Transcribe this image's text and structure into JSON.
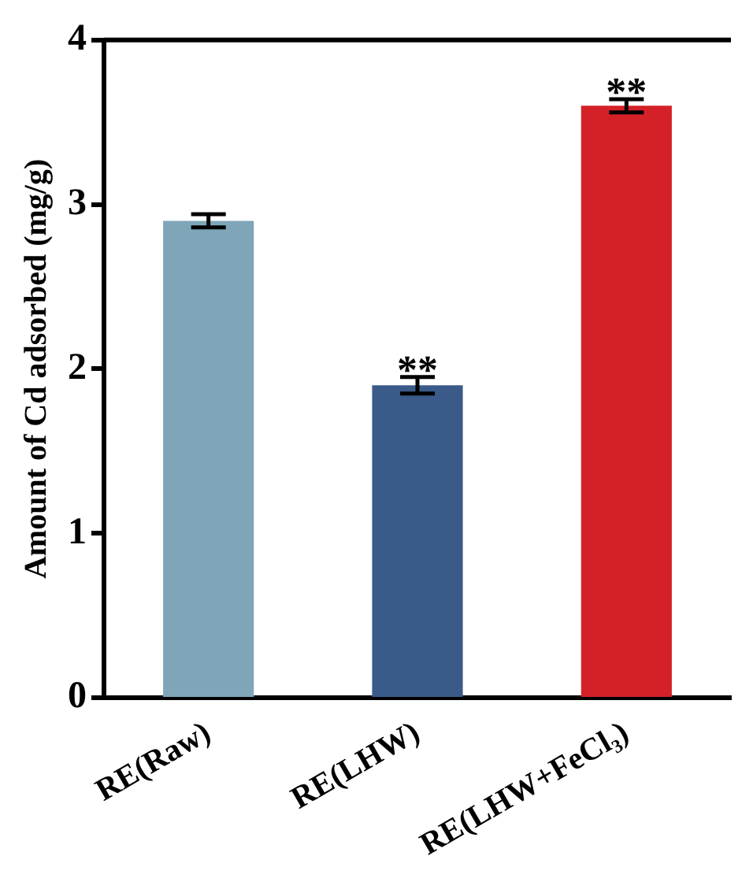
{
  "chart_data": {
    "type": "bar",
    "ylabel": "Amount of Cd adsorbed (mg/g)",
    "categories": [
      "RE(Raw)",
      "RE(LHW)",
      "RE(LHW+FeCl₃)"
    ],
    "values": [
      2.9,
      1.9,
      3.6
    ],
    "colors": [
      "#7ea6b8",
      "#3a5a8a",
      "#d42027"
    ],
    "errors": [
      0.04,
      0.05,
      0.04
    ],
    "ylim": [
      0,
      4
    ],
    "yticks": [
      0,
      1,
      2,
      3,
      4
    ],
    "grid": false,
    "legend": false,
    "annotations": [
      {
        "text": "**",
        "x": "RE(LHW)",
        "y": 1.9
      },
      {
        "text": "**",
        "x": "RE(LHW+FeCl₃)",
        "y": 3.6
      }
    ]
  }
}
